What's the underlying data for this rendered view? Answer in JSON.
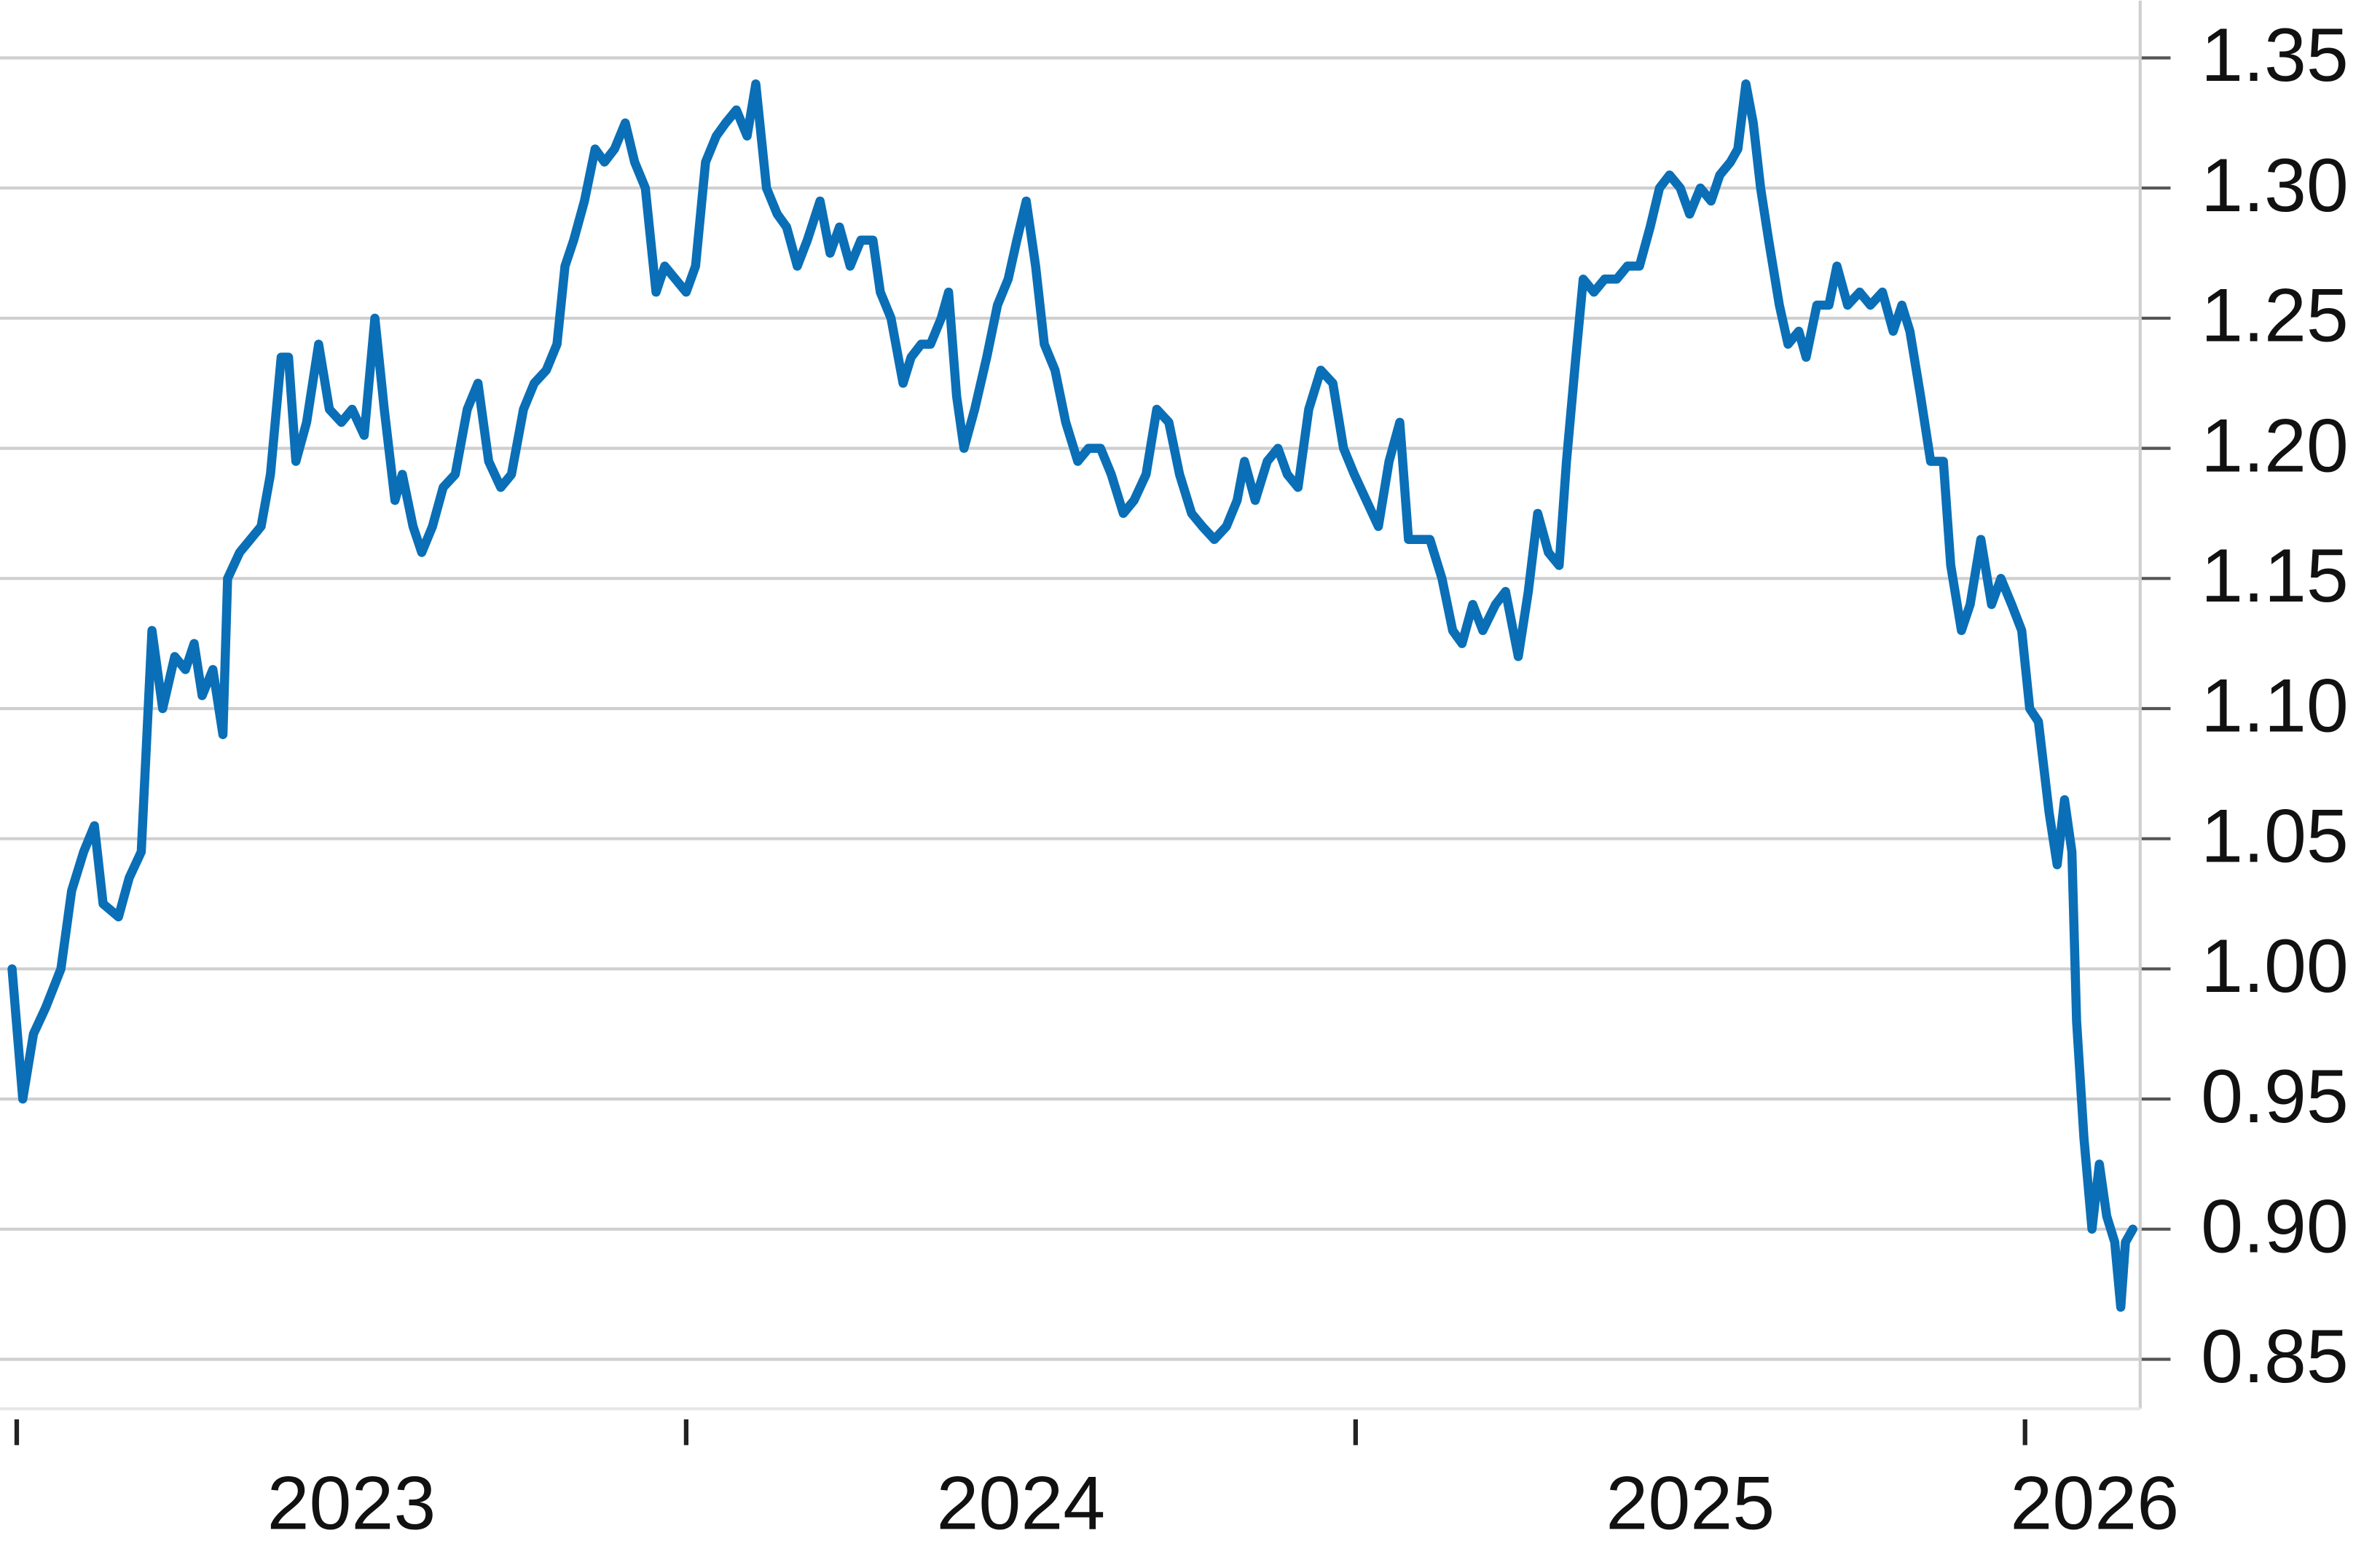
{
  "chart_data": {
    "type": "line",
    "x": [
      2022.993,
      2023.009,
      2023.025,
      2023.043,
      2023.066,
      2023.082,
      2023.1,
      2023.116,
      2023.129,
      2023.152,
      2023.168,
      2023.186,
      2023.202,
      2023.218,
      2023.236,
      2023.252,
      2023.265,
      2023.277,
      2023.293,
      2023.308,
      2023.315,
      2023.333,
      2023.349,
      2023.365,
      2023.379,
      2023.395,
      2023.406,
      2023.417,
      2023.433,
      2023.451,
      2023.467,
      2023.485,
      2023.501,
      2023.519,
      2023.535,
      2023.549,
      2023.565,
      2023.576,
      2023.592,
      2023.605,
      2023.621,
      2023.637,
      2023.655,
      2023.673,
      2023.689,
      2023.705,
      2023.723,
      2023.739,
      2023.757,
      2023.773,
      2023.791,
      2023.807,
      2023.819,
      2023.832,
      2023.848,
      2023.864,
      2023.878,
      2023.893,
      2023.909,
      2023.923,
      2023.939,
      2023.955,
      2023.968,
      2023.984,
      2024.0,
      2024.014,
      2024.029,
      2024.045,
      2024.059,
      2024.075,
      2024.091,
      2024.104,
      2024.12,
      2024.136,
      2024.15,
      2024.166,
      2024.181,
      2024.2,
      2024.215,
      2024.229,
      2024.245,
      2024.261,
      2024.279,
      2024.29,
      2024.306,
      2024.324,
      2024.336,
      2024.351,
      2024.365,
      2024.381,
      2024.392,
      2024.404,
      2024.415,
      2024.431,
      2024.449,
      2024.465,
      2024.481,
      2024.494,
      2024.508,
      2024.522,
      2024.535,
      2024.551,
      2024.567,
      2024.585,
      2024.601,
      2024.619,
      2024.635,
      2024.653,
      2024.669,
      2024.687,
      2024.703,
      2024.721,
      2024.737,
      2024.755,
      2024.771,
      2024.789,
      2024.807,
      2024.823,
      2024.834,
      2024.85,
      2024.868,
      2024.884,
      2024.898,
      2024.914,
      2024.93,
      2024.948,
      2024.966,
      2024.982,
      2024.998,
      2025.016,
      2025.034,
      2025.05,
      2025.066,
      2025.079,
      2025.095,
      2025.111,
      2025.129,
      2025.145,
      2025.159,
      2025.175,
      2025.19,
      2025.209,
      2025.224,
      2025.243,
      2025.258,
      2025.272,
      2025.288,
      2025.304,
      2025.315,
      2025.329,
      2025.34,
      2025.356,
      2025.372,
      2025.39,
      2025.406,
      2025.424,
      2025.44,
      2025.454,
      2025.469,
      2025.485,
      2025.499,
      2025.515,
      2025.531,
      2025.544,
      2025.56,
      2025.571,
      2025.583,
      2025.594,
      2025.605,
      2025.617,
      2025.633,
      2025.646,
      2025.662,
      2025.673,
      2025.689,
      2025.707,
      2025.719,
      2025.735,
      2025.753,
      2025.769,
      2025.787,
      2025.803,
      2025.816,
      2025.828,
      2025.844,
      2025.859,
      2025.878,
      2025.889,
      2025.905,
      2025.918,
      2025.934,
      2025.95,
      2025.964,
      2025.98,
      2025.995,
      2026.007,
      2026.02,
      2026.036,
      2026.048,
      2026.059,
      2026.07,
      2026.077,
      2026.088,
      2026.1,
      2026.111,
      2026.122,
      2026.134,
      2026.143,
      2026.15,
      2026.161
    ],
    "series": [
      {
        "color": "#0a6fb6",
        "values": [
          1.0,
          0.95,
          0.975,
          0.985,
          1.0,
          1.03,
          1.045,
          1.055,
          1.025,
          1.02,
          1.035,
          1.045,
          1.13,
          1.1,
          1.12,
          1.115,
          1.125,
          1.105,
          1.115,
          1.09,
          1.15,
          1.16,
          1.165,
          1.17,
          1.19,
          1.235,
          1.235,
          1.195,
          1.21,
          1.24,
          1.215,
          1.21,
          1.215,
          1.205,
          1.25,
          1.215,
          1.18,
          1.19,
          1.17,
          1.16,
          1.17,
          1.185,
          1.19,
          1.215,
          1.225,
          1.195,
          1.185,
          1.19,
          1.215,
          1.225,
          1.23,
          1.24,
          1.27,
          1.28,
          1.295,
          1.315,
          1.31,
          1.315,
          1.325,
          1.31,
          1.3,
          1.26,
          1.27,
          1.265,
          1.26,
          1.27,
          1.31,
          1.32,
          1.325,
          1.33,
          1.32,
          1.34,
          1.3,
          1.29,
          1.285,
          1.27,
          1.28,
          1.295,
          1.275,
          1.285,
          1.27,
          1.28,
          1.28,
          1.26,
          1.25,
          1.225,
          1.235,
          1.24,
          1.24,
          1.25,
          1.26,
          1.22,
          1.2,
          1.215,
          1.235,
          1.255,
          1.265,
          1.28,
          1.295,
          1.27,
          1.24,
          1.23,
          1.21,
          1.195,
          1.2,
          1.2,
          1.19,
          1.175,
          1.18,
          1.19,
          1.215,
          1.21,
          1.19,
          1.175,
          1.17,
          1.165,
          1.17,
          1.18,
          1.195,
          1.18,
          1.195,
          1.2,
          1.19,
          1.185,
          1.215,
          1.23,
          1.225,
          1.2,
          1.19,
          1.18,
          1.17,
          1.195,
          1.21,
          1.165,
          1.165,
          1.165,
          1.15,
          1.13,
          1.125,
          1.14,
          1.13,
          1.14,
          1.145,
          1.12,
          1.145,
          1.175,
          1.16,
          1.155,
          1.195,
          1.235,
          1.265,
          1.26,
          1.265,
          1.265,
          1.27,
          1.27,
          1.285,
          1.3,
          1.305,
          1.3,
          1.29,
          1.3,
          1.295,
          1.305,
          1.31,
          1.315,
          1.34,
          1.325,
          1.3,
          1.28,
          1.255,
          1.24,
          1.245,
          1.235,
          1.255,
          1.255,
          1.27,
          1.255,
          1.26,
          1.255,
          1.26,
          1.245,
          1.255,
          1.245,
          1.22,
          1.195,
          1.195,
          1.155,
          1.13,
          1.14,
          1.165,
          1.14,
          1.15,
          1.14,
          1.13,
          1.1,
          1.095,
          1.06,
          1.04,
          1.065,
          1.045,
          0.98,
          0.935,
          0.9,
          0.925,
          0.905,
          0.895,
          0.87,
          0.895,
          0.9
        ]
      }
    ],
    "xlim": [
      2022.975,
      2026.172
    ],
    "xticks": [
      2023,
      2024,
      2025,
      2026
    ],
    "ylim": [
      0.831,
      1.372
    ],
    "yticks": [
      0.85,
      {
        "value": 0.9,
        "label": "0.90"
      },
      0.95,
      {
        "value": 1.0,
        "label": "1.00"
      },
      1.05,
      {
        "value": 1.1,
        "label": "1.10"
      },
      1.15,
      {
        "value": 1.2,
        "label": "1.20"
      },
      1.25,
      {
        "value": 1.3,
        "label": "1.30"
      },
      1.35
    ],
    "grid": true,
    "y_axis_side": "right"
  }
}
